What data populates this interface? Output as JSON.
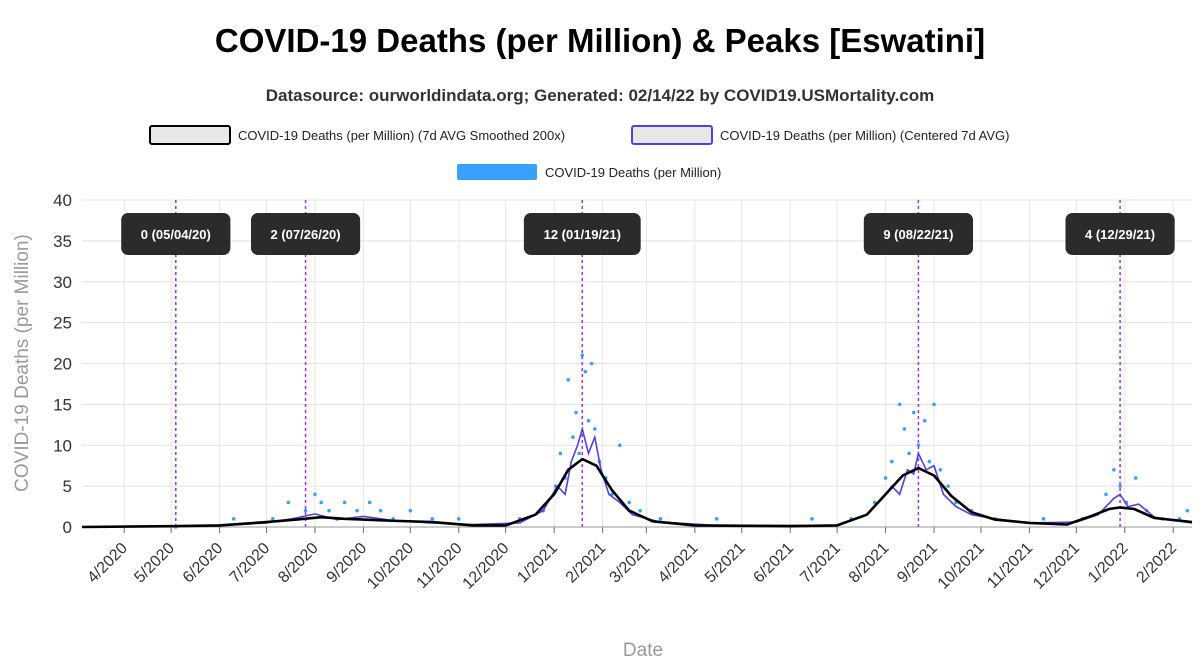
{
  "title": "COVID-19 Deaths (per Million) & Peaks [Eswatini]",
  "subtitle": "Datasource: ourworldindata.org; Generated: 02/14/22 by COVID19.USMortality.com",
  "chart_data": {
    "type": "line",
    "title": "COVID-19 Deaths (per Million) & Peaks [Eswatini]",
    "xlabel": "Date",
    "ylabel": "COVID-19 Deaths (per Million)",
    "xlim": [
      "2020-03-05",
      "2022-02-13"
    ],
    "ylim": [
      0,
      40
    ],
    "y_ticks": [
      0,
      5,
      10,
      15,
      20,
      25,
      30,
      35,
      40
    ],
    "x_ticks": [
      {
        "label": "4/2020",
        "date": "2020-04-01"
      },
      {
        "label": "5/2020",
        "date": "2020-05-01"
      },
      {
        "label": "6/2020",
        "date": "2020-06-01"
      },
      {
        "label": "7/2020",
        "date": "2020-07-01"
      },
      {
        "label": "8/2020",
        "date": "2020-08-01"
      },
      {
        "label": "9/2020",
        "date": "2020-09-01"
      },
      {
        "label": "10/2020",
        "date": "2020-10-01"
      },
      {
        "label": "11/2020",
        "date": "2020-11-01"
      },
      {
        "label": "12/2020",
        "date": "2020-12-01"
      },
      {
        "label": "1/2021",
        "date": "2021-01-01"
      },
      {
        "label": "2/2021",
        "date": "2021-02-01"
      },
      {
        "label": "3/2021",
        "date": "2021-03-01"
      },
      {
        "label": "4/2021",
        "date": "2021-04-01"
      },
      {
        "label": "5/2021",
        "date": "2021-05-01"
      },
      {
        "label": "6/2021",
        "date": "2021-06-01"
      },
      {
        "label": "7/2021",
        "date": "2021-07-01"
      },
      {
        "label": "8/2021",
        "date": "2021-08-01"
      },
      {
        "label": "9/2021",
        "date": "2021-09-01"
      },
      {
        "label": "10/2021",
        "date": "2021-10-01"
      },
      {
        "label": "11/2021",
        "date": "2021-11-01"
      },
      {
        "label": "12/2021",
        "date": "2021-12-01"
      },
      {
        "label": "1/2022",
        "date": "2022-01-01"
      },
      {
        "label": "2/2022",
        "date": "2022-02-01"
      }
    ],
    "grid": true,
    "legend_position": "top-center",
    "legend": [
      {
        "label": "COVID-19 Deaths (per Million) (7d AVG Smoothed 200x)",
        "stroke": "#000000",
        "fill": "#e8e8e8"
      },
      {
        "label": "COVID-19 Deaths (per Million) (Centered 7d AVG)",
        "stroke": "#5040e0",
        "fill": "#e8e8e8"
      },
      {
        "label": "COVID-19 Deaths (per Million)",
        "stroke": "#3aa0ff",
        "fill": "#3aa0ff"
      }
    ],
    "peaks": [
      {
        "label": "0 (05/04/20)",
        "date": "2020-05-04",
        "value": 0
      },
      {
        "label": "2 (07/26/20)",
        "date": "2020-07-26",
        "value": 2
      },
      {
        "label": "12 (01/19/21)",
        "date": "2021-01-19",
        "value": 12
      },
      {
        "label": "9 (08/22/21)",
        "date": "2021-08-22",
        "value": 9
      },
      {
        "label": "4 (12/29/21)",
        "date": "2021-12-29",
        "value": 4
      }
    ],
    "series": [
      {
        "name": "COVID-19 Deaths (per Million) (7d AVG Smoothed 200x)",
        "color": "#000000",
        "points": [
          [
            "2020-03-05",
            0
          ],
          [
            "2020-05-01",
            0.1
          ],
          [
            "2020-06-01",
            0.2
          ],
          [
            "2020-07-01",
            0.6
          ],
          [
            "2020-07-20",
            0.9
          ],
          [
            "2020-08-05",
            1.2
          ],
          [
            "2020-08-20",
            1.0
          ],
          [
            "2020-09-15",
            0.8
          ],
          [
            "2020-10-15",
            0.6
          ],
          [
            "2020-11-10",
            0.2
          ],
          [
            "2020-12-01",
            0.2
          ],
          [
            "2020-12-20",
            1.5
          ],
          [
            "2021-01-01",
            4
          ],
          [
            "2021-01-10",
            7
          ],
          [
            "2021-01-19",
            8.3
          ],
          [
            "2021-01-28",
            7.5
          ],
          [
            "2021-02-07",
            4.5
          ],
          [
            "2021-02-18",
            2
          ],
          [
            "2021-03-05",
            0.7
          ],
          [
            "2021-04-01",
            0.2
          ],
          [
            "2021-06-01",
            0.1
          ],
          [
            "2021-07-01",
            0.2
          ],
          [
            "2021-07-20",
            1.5
          ],
          [
            "2021-08-01",
            4
          ],
          [
            "2021-08-12",
            6.3
          ],
          [
            "2021-08-22",
            7.2
          ],
          [
            "2021-09-01",
            6.3
          ],
          [
            "2021-09-12",
            3.8
          ],
          [
            "2021-09-25",
            1.8
          ],
          [
            "2021-10-10",
            0.9
          ],
          [
            "2021-11-01",
            0.5
          ],
          [
            "2021-11-25",
            0.3
          ],
          [
            "2021-12-10",
            1.3
          ],
          [
            "2021-12-22",
            2.2
          ],
          [
            "2021-12-29",
            2.4
          ],
          [
            "2022-01-07",
            2.2
          ],
          [
            "2022-01-20",
            1.1
          ],
          [
            "2022-02-13",
            0.6
          ]
        ]
      },
      {
        "name": "COVID-19 Deaths (per Million) (Centered 7d AVG)",
        "color": "#5040e0",
        "points": [
          [
            "2020-03-05",
            0
          ],
          [
            "2020-06-01",
            0.2
          ],
          [
            "2020-07-01",
            0.5
          ],
          [
            "2020-07-20",
            1.1
          ],
          [
            "2020-08-01",
            1.6
          ],
          [
            "2020-08-15",
            0.9
          ],
          [
            "2020-09-01",
            1.3
          ],
          [
            "2020-09-20",
            0.8
          ],
          [
            "2020-10-15",
            0.5
          ],
          [
            "2020-11-10",
            0.3
          ],
          [
            "2020-12-10",
            0.5
          ],
          [
            "2020-12-25",
            2
          ],
          [
            "2021-01-03",
            5
          ],
          [
            "2021-01-08",
            4
          ],
          [
            "2021-01-12",
            8
          ],
          [
            "2021-01-16",
            10
          ],
          [
            "2021-01-19",
            12
          ],
          [
            "2021-01-23",
            9
          ],
          [
            "2021-01-27",
            11
          ],
          [
            "2021-01-31",
            7
          ],
          [
            "2021-02-05",
            4
          ],
          [
            "2021-02-12",
            3
          ],
          [
            "2021-02-20",
            1.5
          ],
          [
            "2021-03-10",
            0.6
          ],
          [
            "2021-04-15",
            0.2
          ],
          [
            "2021-07-01",
            0.2
          ],
          [
            "2021-07-20",
            1.5
          ],
          [
            "2021-07-30",
            3.5
          ],
          [
            "2021-08-05",
            5
          ],
          [
            "2021-08-10",
            4
          ],
          [
            "2021-08-15",
            7
          ],
          [
            "2021-08-19",
            6.5
          ],
          [
            "2021-08-22",
            9
          ],
          [
            "2021-08-27",
            7
          ],
          [
            "2021-09-01",
            7.5
          ],
          [
            "2021-09-07",
            4
          ],
          [
            "2021-09-15",
            2.5
          ],
          [
            "2021-09-25",
            1.5
          ],
          [
            "2021-10-10",
            1
          ],
          [
            "2021-11-01",
            0.5
          ],
          [
            "2021-12-01",
            0.6
          ],
          [
            "2021-12-15",
            1.5
          ],
          [
            "2021-12-25",
            3.5
          ],
          [
            "2021-12-29",
            4
          ],
          [
            "2022-01-03",
            2.5
          ],
          [
            "2022-01-10",
            2.8
          ],
          [
            "2022-01-20",
            1.2
          ],
          [
            "2022-02-13",
            0.5
          ]
        ]
      },
      {
        "name": "COVID-19 Deaths (per Million)",
        "color": "#3aa0ff",
        "points": [
          [
            "2020-05-04",
            0
          ],
          [
            "2020-06-10",
            1
          ],
          [
            "2020-07-05",
            1
          ],
          [
            "2020-07-15",
            3
          ],
          [
            "2020-07-22",
            1
          ],
          [
            "2020-07-26",
            2
          ],
          [
            "2020-08-01",
            4
          ],
          [
            "2020-08-05",
            3
          ],
          [
            "2020-08-10",
            2
          ],
          [
            "2020-08-15",
            1
          ],
          [
            "2020-08-20",
            3
          ],
          [
            "2020-08-28",
            2
          ],
          [
            "2020-09-05",
            3
          ],
          [
            "2020-09-12",
            2
          ],
          [
            "2020-09-20",
            1
          ],
          [
            "2020-10-01",
            2
          ],
          [
            "2020-10-15",
            1
          ],
          [
            "2020-11-01",
            1
          ],
          [
            "2020-12-10",
            1
          ],
          [
            "2020-12-25",
            2
          ],
          [
            "2021-01-02",
            5
          ],
          [
            "2021-01-05",
            9
          ],
          [
            "2021-01-08",
            6
          ],
          [
            "2021-01-10",
            18
          ],
          [
            "2021-01-13",
            11
          ],
          [
            "2021-01-15",
            14
          ],
          [
            "2021-01-17",
            9
          ],
          [
            "2021-01-19",
            21
          ],
          [
            "2021-01-21",
            19
          ],
          [
            "2021-01-23",
            13
          ],
          [
            "2021-01-25",
            20
          ],
          [
            "2021-01-27",
            12
          ],
          [
            "2021-01-30",
            8
          ],
          [
            "2021-02-03",
            6
          ],
          [
            "2021-02-07",
            4
          ],
          [
            "2021-02-12",
            10
          ],
          [
            "2021-02-18",
            3
          ],
          [
            "2021-02-25",
            2
          ],
          [
            "2021-03-10",
            1
          ],
          [
            "2021-04-15",
            1
          ],
          [
            "2021-06-15",
            1
          ],
          [
            "2021-07-10",
            1
          ],
          [
            "2021-07-25",
            3
          ],
          [
            "2021-08-01",
            6
          ],
          [
            "2021-08-05",
            8
          ],
          [
            "2021-08-10",
            15
          ],
          [
            "2021-08-13",
            12
          ],
          [
            "2021-08-16",
            9
          ],
          [
            "2021-08-19",
            14
          ],
          [
            "2021-08-22",
            10
          ],
          [
            "2021-08-26",
            13
          ],
          [
            "2021-08-29",
            8
          ],
          [
            "2021-09-01",
            15
          ],
          [
            "2021-09-05",
            7
          ],
          [
            "2021-09-10",
            5
          ],
          [
            "2021-09-15",
            3
          ],
          [
            "2021-09-25",
            2
          ],
          [
            "2021-10-10",
            1
          ],
          [
            "2021-11-10",
            1
          ],
          [
            "2021-12-05",
            1
          ],
          [
            "2021-12-20",
            4
          ],
          [
            "2021-12-25",
            7
          ],
          [
            "2021-12-29",
            5
          ],
          [
            "2022-01-02",
            3
          ],
          [
            "2022-01-08",
            6
          ],
          [
            "2022-01-15",
            2
          ],
          [
            "2022-01-25",
            1
          ],
          [
            "2022-02-05",
            1
          ],
          [
            "2022-02-10",
            2
          ]
        ]
      }
    ]
  }
}
